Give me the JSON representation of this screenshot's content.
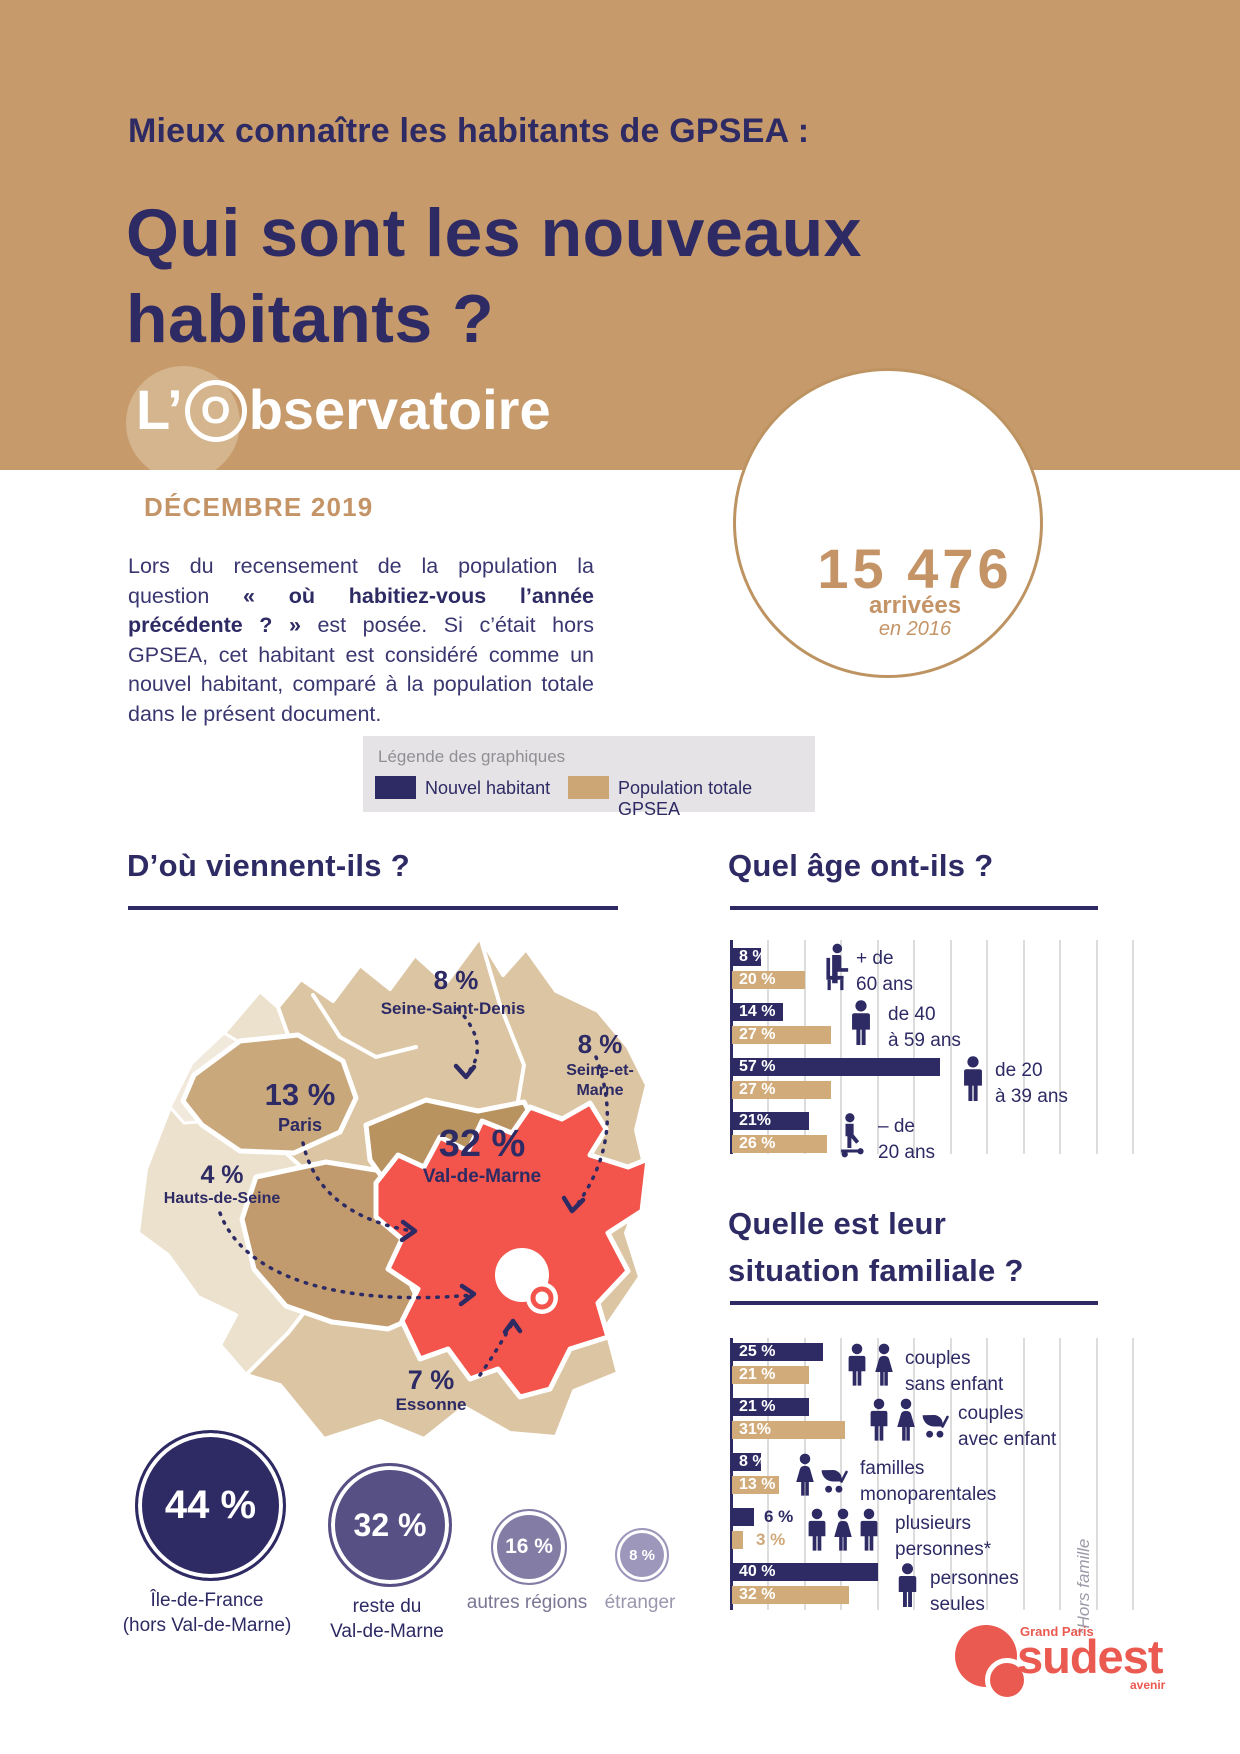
{
  "colors": {
    "navy": "#2d2a64",
    "band_tan": "#c79a6b",
    "bar_tan": "#d2ab7a",
    "red": "#f3544b",
    "gold": "#c49467"
  },
  "header": {
    "kicker": "Mieux connaître les habitants de GPSEA :",
    "title_line1": "Qui sont les nouveaux",
    "title_line2": "habitants ?",
    "brand_l": "L’",
    "brand_o": "O",
    "brand_rest": "bservatoire",
    "date": "DÉCEMBRE 2019"
  },
  "intro": {
    "text_before": "Lors du recensement de la population la question ",
    "text_bold": "« où habitiez-vous l’année précédente ? »",
    "text_after": " est posée. Si c’était hors GPSEA, cet habitant est considéré comme un nouvel habitant, comparé à la population totale dans le présent document."
  },
  "stat": {
    "number": "15 476",
    "label": "arrivées",
    "note": "en 2016"
  },
  "legend": {
    "title": "Légende des graphiques",
    "new_label": "Nouvel habitant",
    "total_label": "Population totale GPSEA"
  },
  "origin": {
    "title": "D’où viennent-ils ?",
    "map_labels": {
      "ssd": {
        "pct": "8 %",
        "name": "Seine-Saint-Denis"
      },
      "sem": {
        "pct": "8 %",
        "name_line1": "Seine-et-",
        "name_line2": "Marne"
      },
      "paris": {
        "pct": "13 %",
        "name": "Paris"
      },
      "vdm": {
        "pct": "32 %",
        "name": "Val-de-Marne"
      },
      "hds": {
        "pct": "4 %",
        "name": "Hauts-de-Seine"
      },
      "essonne": {
        "pct": "7 %",
        "name": "Essonne"
      }
    },
    "circles": [
      {
        "pct": "44 %",
        "label_line1": "Île-de-France",
        "label_line2": "(hors Val-de-Marne)"
      },
      {
        "pct": "32 %",
        "label_line1": "reste du",
        "label_line2": "Val-de-Marne"
      },
      {
        "pct": "16 %",
        "label_line1": "autres régions",
        "label_line2": ""
      },
      {
        "pct": "8 %",
        "label_line1": "étranger",
        "label_line2": ""
      }
    ]
  },
  "age": {
    "title": "Quel âge ont-ils ?",
    "rows": [
      {
        "new_label": "8 %",
        "total_label": "20 %",
        "new_value": 8,
        "total_value": 20,
        "cat_line1": "+ de",
        "cat_line2": "60 ans"
      },
      {
        "new_label": "14 %",
        "total_label": "27 %",
        "new_value": 14,
        "total_value": 27,
        "cat_line1": "de 40",
        "cat_line2": "à 59 ans"
      },
      {
        "new_label": "57 %",
        "total_label": "27 %",
        "new_value": 57,
        "total_value": 27,
        "cat_line1": "de 20",
        "cat_line2": "à 39 ans"
      },
      {
        "new_label": "21%",
        "total_label": "26 %",
        "new_value": 21,
        "total_value": 26,
        "cat_line1": "– de",
        "cat_line2": "20 ans"
      }
    ]
  },
  "family": {
    "title_line1": "Quelle est leur",
    "title_line2": "situation familiale ?",
    "rows": [
      {
        "new_label": "25 %",
        "total_label": "21 %",
        "new_value": 25,
        "total_value": 21,
        "cat_line1": "couples",
        "cat_line2": "sans enfant"
      },
      {
        "new_label": "21 %",
        "total_label": "31%",
        "new_value": 21,
        "total_value": 31,
        "cat_line1": "couples",
        "cat_line2": "avec enfant"
      },
      {
        "new_label": "8 %",
        "total_label": "13 %",
        "new_value": 8,
        "total_value": 13,
        "cat_line1": "familles",
        "cat_line2": "monoparentales"
      },
      {
        "new_label": "6 %",
        "total_label": "3 %",
        "new_value": 6,
        "total_value": 3,
        "cat_line1": "plusieurs",
        "cat_line2": "personnes*"
      },
      {
        "new_label": "40 %",
        "total_label": "32 %",
        "new_value": 40,
        "total_value": 32,
        "cat_line1": "personnes",
        "cat_line2": "seules"
      }
    ],
    "footnote": "*Hors famille"
  },
  "logo": {
    "top": "Grand Paris",
    "name": "sudest",
    "sub": "avenir"
  },
  "chart_data": [
    {
      "type": "map",
      "title": "D’où viennent-ils ?",
      "units": "%",
      "regions": [
        {
          "name": "Seine-Saint-Denis",
          "value": 8
        },
        {
          "name": "Seine-et-Marne",
          "value": 8
        },
        {
          "name": "Paris",
          "value": 13
        },
        {
          "name": "Val-de-Marne",
          "value": 32
        },
        {
          "name": "Hauts-de-Seine",
          "value": 4
        },
        {
          "name": "Essonne",
          "value": 7
        }
      ],
      "summary_circles": [
        {
          "label": "Île-de-France (hors Val-de-Marne)",
          "value": 44
        },
        {
          "label": "reste du Val-de-Marne",
          "value": 32
        },
        {
          "label": "autres régions",
          "value": 16
        },
        {
          "label": "étranger",
          "value": 8
        }
      ]
    },
    {
      "type": "bar",
      "orientation": "horizontal",
      "title": "Quel âge ont-ils ?",
      "categories": [
        "+ de 60 ans",
        "de 40 à 59 ans",
        "de 20 à 39 ans",
        "– de 20 ans"
      ],
      "series": [
        {
          "name": "Nouvel habitant",
          "values": [
            8,
            14,
            57,
            21
          ]
        },
        {
          "name": "Population totale GPSEA",
          "values": [
            20,
            27,
            27,
            26
          ]
        }
      ],
      "xlim": [
        0,
        110
      ],
      "grid": true,
      "legend_position": "top"
    },
    {
      "type": "bar",
      "orientation": "horizontal",
      "title": "Quelle est leur situation familiale ?",
      "categories": [
        "couples sans enfant",
        "couples avec enfant",
        "familles monoparentales",
        "plusieurs personnes*",
        "personnes seules"
      ],
      "series": [
        {
          "name": "Nouvel habitant",
          "values": [
            25,
            21,
            8,
            6,
            40
          ]
        },
        {
          "name": "Population totale GPSEA",
          "values": [
            21,
            31,
            13,
            3,
            32
          ]
        }
      ],
      "xlim": [
        0,
        110
      ],
      "grid": true,
      "footnote": "*Hors famille"
    }
  ]
}
